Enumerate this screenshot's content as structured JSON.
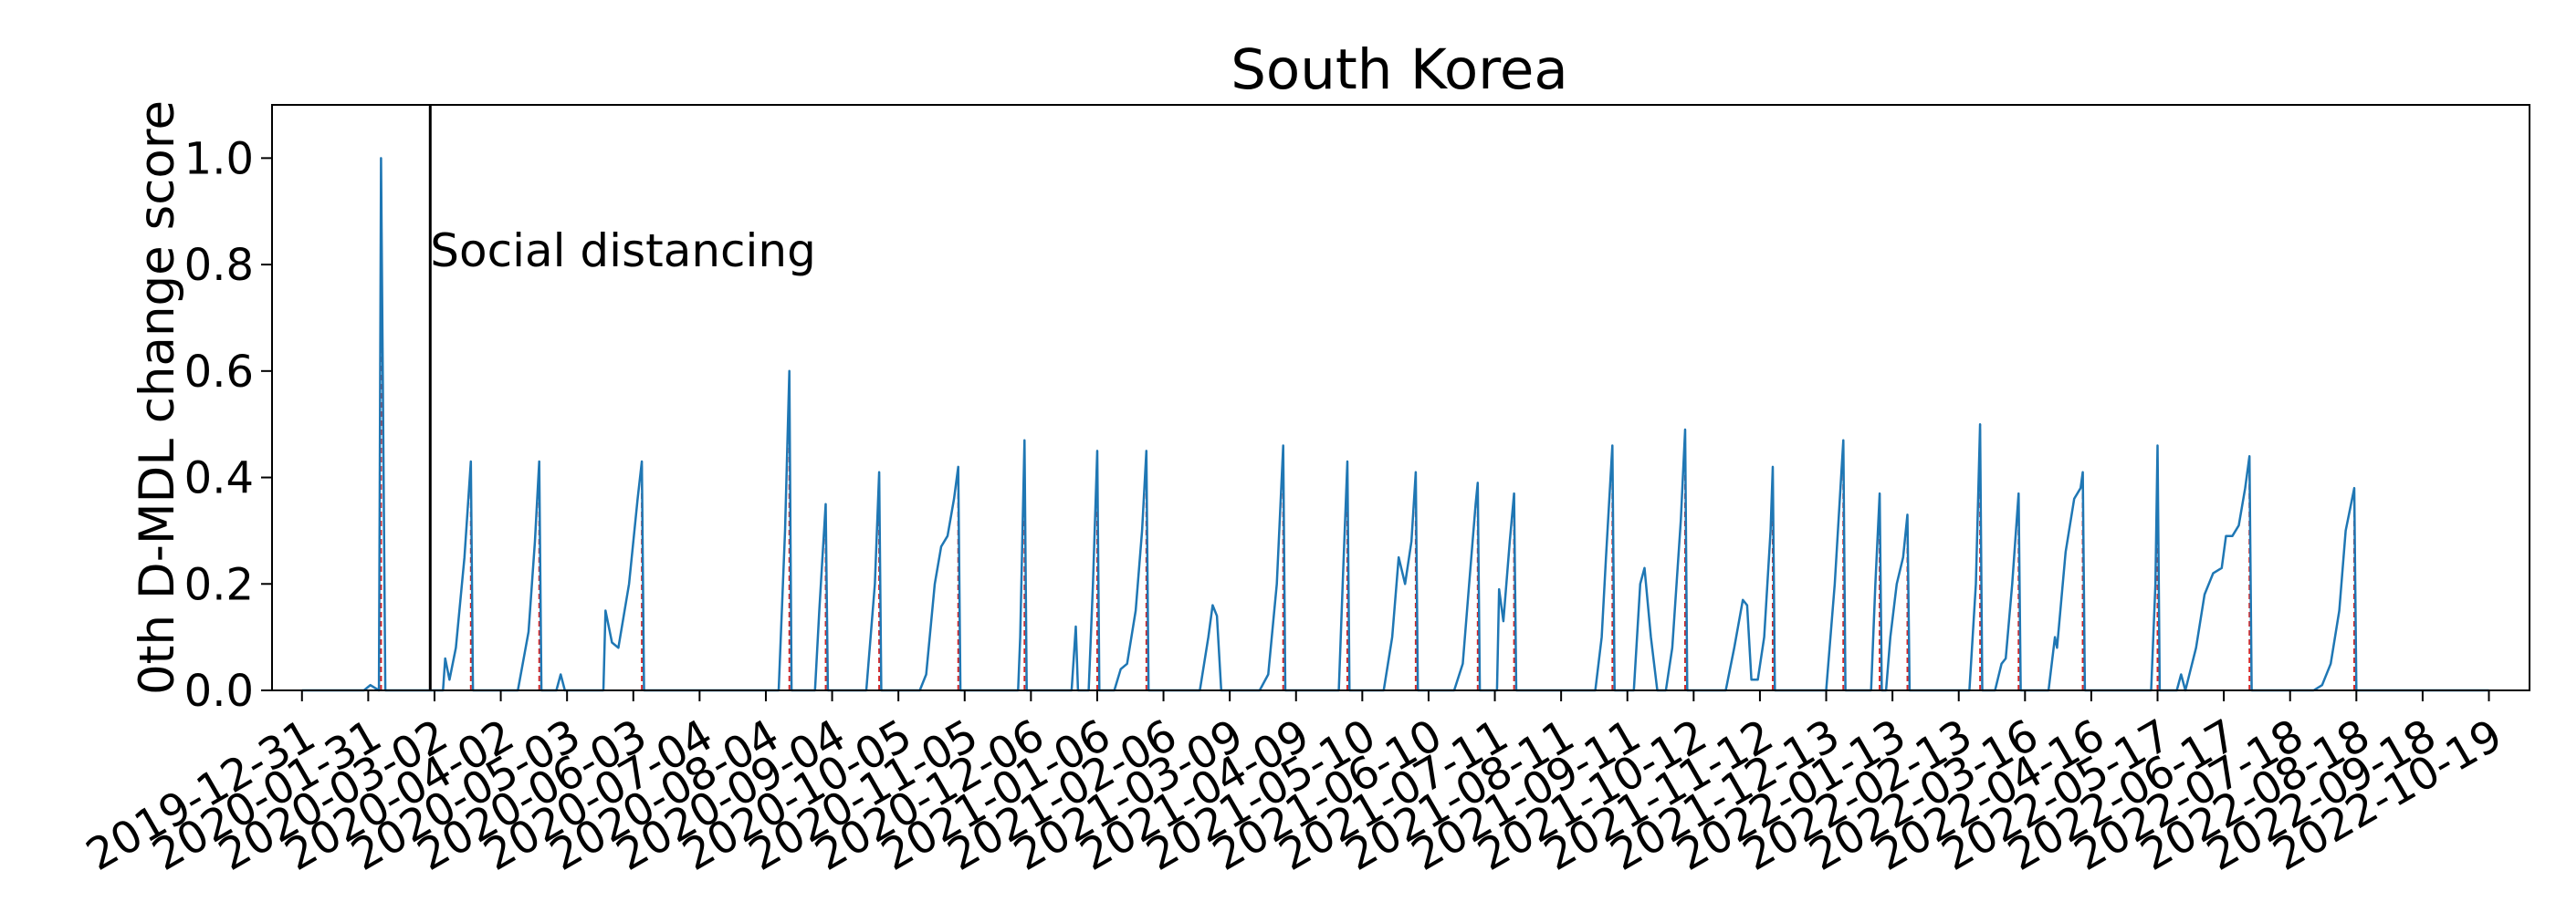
{
  "chart_data": {
    "type": "line",
    "title": "South Korea",
    "xlabel": "",
    "ylabel": "0th D-MDL change score",
    "ylim": [
      0,
      1.1
    ],
    "yticks": [
      0.0,
      0.2,
      0.4,
      0.6,
      0.8,
      1.0
    ],
    "ytick_labels": [
      "0.0",
      "0.2",
      "0.4",
      "0.6",
      "0.8",
      "1.0"
    ],
    "xlim": [
      "2019-12-17",
      "2022-11-07"
    ],
    "xtick_labels": [
      "2019-12-31",
      "2020-01-31",
      "2020-03-02",
      "2020-04-02",
      "2020-05-03",
      "2020-06-03",
      "2020-07-04",
      "2020-08-04",
      "2020-09-04",
      "2020-10-05",
      "2020-11-05",
      "2020-12-06",
      "2021-01-06",
      "2021-02-06",
      "2021-03-09",
      "2021-04-09",
      "2021-05-10",
      "2021-06-10",
      "2021-07-11",
      "2021-08-11",
      "2021-09-11",
      "2021-10-12",
      "2021-11-12",
      "2021-12-13",
      "2022-01-13",
      "2022-02-13",
      "2022-03-16",
      "2022-04-16",
      "2022-05-17",
      "2022-06-17",
      "2022-07-18",
      "2022-08-18",
      "2022-09-18",
      "2022-10-19"
    ],
    "grid": false,
    "line_color": "#1f77b4",
    "alarm_color": "#d62728",
    "event_line_color": "#000000",
    "annotations": [
      {
        "date": "2020-02-29",
        "text": "Social distancing"
      }
    ],
    "series": [
      {
        "color": "#1f77b4",
        "points": [
          [
            "2019-12-31",
            0.0
          ],
          [
            "2020-01-29",
            0.0
          ],
          [
            "2020-02-01",
            0.01
          ],
          [
            "2020-02-05",
            0.0
          ],
          [
            "2020-02-06",
            1.0
          ],
          [
            "2020-02-08",
            0.0
          ],
          [
            "2020-03-06",
            0.0
          ],
          [
            "2020-03-07",
            0.06
          ],
          [
            "2020-03-09",
            0.02
          ],
          [
            "2020-03-12",
            0.08
          ],
          [
            "2020-03-16",
            0.25
          ],
          [
            "2020-03-19",
            0.43
          ],
          [
            "2020-03-20",
            0.0
          ],
          [
            "2020-04-10",
            0.0
          ],
          [
            "2020-04-15",
            0.11
          ],
          [
            "2020-04-18",
            0.28
          ],
          [
            "2020-04-20",
            0.43
          ],
          [
            "2020-04-21",
            0.0
          ],
          [
            "2020-04-28",
            0.0
          ],
          [
            "2020-04-30",
            0.03
          ],
          [
            "2020-05-02",
            0.0
          ],
          [
            "2020-05-20",
            0.0
          ],
          [
            "2020-05-21",
            0.15
          ],
          [
            "2020-05-24",
            0.09
          ],
          [
            "2020-05-27",
            0.08
          ],
          [
            "2020-06-01",
            0.2
          ],
          [
            "2020-06-05",
            0.36
          ],
          [
            "2020-06-07",
            0.43
          ],
          [
            "2020-06-08",
            0.0
          ],
          [
            "2020-08-10",
            0.0
          ],
          [
            "2020-08-13",
            0.3
          ],
          [
            "2020-08-15",
            0.6
          ],
          [
            "2020-08-16",
            0.0
          ],
          [
            "2020-08-27",
            0.0
          ],
          [
            "2020-08-29",
            0.15
          ],
          [
            "2020-09-01",
            0.35
          ],
          [
            "2020-09-02",
            0.0
          ],
          [
            "2020-09-20",
            0.0
          ],
          [
            "2020-09-24",
            0.2
          ],
          [
            "2020-09-26",
            0.41
          ],
          [
            "2020-09-27",
            0.0
          ],
          [
            "2020-10-15",
            0.0
          ],
          [
            "2020-10-18",
            0.03
          ],
          [
            "2020-10-22",
            0.2
          ],
          [
            "2020-10-25",
            0.27
          ],
          [
            "2020-10-28",
            0.29
          ],
          [
            "2020-10-31",
            0.36
          ],
          [
            "2020-11-02",
            0.42
          ],
          [
            "2020-11-03",
            0.0
          ],
          [
            "2020-11-30",
            0.0
          ],
          [
            "2020-12-01",
            0.1
          ],
          [
            "2020-12-03",
            0.47
          ],
          [
            "2020-12-04",
            0.0
          ],
          [
            "2020-12-25",
            0.0
          ],
          [
            "2020-12-27",
            0.12
          ],
          [
            "2020-12-28",
            0.0
          ],
          [
            "2021-01-02",
            0.0
          ],
          [
            "2021-01-04",
            0.2
          ],
          [
            "2021-01-06",
            0.45
          ],
          [
            "2021-01-07",
            0.0
          ],
          [
            "2021-01-14",
            0.0
          ],
          [
            "2021-01-17",
            0.04
          ],
          [
            "2021-01-20",
            0.05
          ],
          [
            "2021-01-24",
            0.15
          ],
          [
            "2021-01-27",
            0.3
          ],
          [
            "2021-01-29",
            0.45
          ],
          [
            "2021-01-30",
            0.0
          ],
          [
            "2021-02-23",
            0.0
          ],
          [
            "2021-02-27",
            0.1
          ],
          [
            "2021-03-01",
            0.16
          ],
          [
            "2021-03-03",
            0.14
          ],
          [
            "2021-03-05",
            0.0
          ],
          [
            "2021-03-23",
            0.0
          ],
          [
            "2021-03-27",
            0.03
          ],
          [
            "2021-03-31",
            0.2
          ],
          [
            "2021-04-03",
            0.46
          ],
          [
            "2021-04-04",
            0.0
          ],
          [
            "2021-04-29",
            0.0
          ],
          [
            "2021-05-01",
            0.22
          ],
          [
            "2021-05-03",
            0.43
          ],
          [
            "2021-05-04",
            0.0
          ],
          [
            "2021-05-20",
            0.0
          ],
          [
            "2021-05-24",
            0.1
          ],
          [
            "2021-05-27",
            0.25
          ],
          [
            "2021-05-30",
            0.2
          ],
          [
            "2021-06-02",
            0.28
          ],
          [
            "2021-06-04",
            0.41
          ],
          [
            "2021-06-05",
            0.0
          ],
          [
            "2021-06-22",
            0.0
          ],
          [
            "2021-06-26",
            0.05
          ],
          [
            "2021-06-29",
            0.2
          ],
          [
            "2021-07-02",
            0.35
          ],
          [
            "2021-07-03",
            0.39
          ],
          [
            "2021-07-04",
            0.0
          ],
          [
            "2021-07-12",
            0.0
          ],
          [
            "2021-07-13",
            0.19
          ],
          [
            "2021-07-15",
            0.13
          ],
          [
            "2021-07-18",
            0.28
          ],
          [
            "2021-07-20",
            0.37
          ],
          [
            "2021-07-21",
            0.0
          ],
          [
            "2021-08-27",
            0.0
          ],
          [
            "2021-08-30",
            0.1
          ],
          [
            "2021-09-01",
            0.25
          ],
          [
            "2021-09-04",
            0.46
          ],
          [
            "2021-09-05",
            0.0
          ],
          [
            "2021-09-14",
            0.0
          ],
          [
            "2021-09-17",
            0.2
          ],
          [
            "2021-09-19",
            0.23
          ],
          [
            "2021-09-22",
            0.1
          ],
          [
            "2021-09-25",
            0.0
          ],
          [
            "2021-09-29",
            0.0
          ],
          [
            "2021-10-02",
            0.08
          ],
          [
            "2021-10-06",
            0.32
          ],
          [
            "2021-10-08",
            0.49
          ],
          [
            "2021-10-09",
            0.0
          ],
          [
            "2021-10-27",
            0.0
          ],
          [
            "2021-10-31",
            0.08
          ],
          [
            "2021-11-04",
            0.17
          ],
          [
            "2021-11-06",
            0.16
          ],
          [
            "2021-11-08",
            0.02
          ],
          [
            "2021-11-11",
            0.02
          ],
          [
            "2021-11-14",
            0.1
          ],
          [
            "2021-11-17",
            0.3
          ],
          [
            "2021-11-18",
            0.42
          ],
          [
            "2021-11-19",
            0.0
          ],
          [
            "2021-12-13",
            0.0
          ],
          [
            "2021-12-17",
            0.2
          ],
          [
            "2021-12-21",
            0.47
          ],
          [
            "2021-12-22",
            0.0
          ],
          [
            "2022-01-03",
            0.0
          ],
          [
            "2022-01-05",
            0.2
          ],
          [
            "2022-01-07",
            0.37
          ],
          [
            "2022-01-08",
            0.0
          ],
          [
            "2022-01-10",
            0.0
          ],
          [
            "2022-01-12",
            0.1
          ],
          [
            "2022-01-15",
            0.2
          ],
          [
            "2022-01-18",
            0.25
          ],
          [
            "2022-01-20",
            0.33
          ],
          [
            "2022-01-21",
            0.0
          ],
          [
            "2022-02-18",
            0.0
          ],
          [
            "2022-02-21",
            0.2
          ],
          [
            "2022-02-23",
            0.5
          ],
          [
            "2022-02-24",
            0.0
          ],
          [
            "2022-03-02",
            0.0
          ],
          [
            "2022-03-05",
            0.05
          ],
          [
            "2022-03-07",
            0.06
          ],
          [
            "2022-03-10",
            0.2
          ],
          [
            "2022-03-13",
            0.37
          ],
          [
            "2022-03-14",
            0.0
          ],
          [
            "2022-03-27",
            0.0
          ],
          [
            "2022-03-30",
            0.1
          ],
          [
            "2022-03-31",
            0.08
          ],
          [
            "2022-04-04",
            0.26
          ],
          [
            "2022-04-08",
            0.36
          ],
          [
            "2022-04-11",
            0.38
          ],
          [
            "2022-04-12",
            0.41
          ],
          [
            "2022-04-13",
            0.0
          ],
          [
            "2022-05-14",
            0.0
          ],
          [
            "2022-05-16",
            0.2
          ],
          [
            "2022-05-17",
            0.46
          ],
          [
            "2022-05-18",
            0.0
          ],
          [
            "2022-05-26",
            0.0
          ],
          [
            "2022-05-28",
            0.03
          ],
          [
            "2022-05-30",
            0.0
          ],
          [
            "2022-06-04",
            0.08
          ],
          [
            "2022-06-08",
            0.18
          ],
          [
            "2022-06-12",
            0.22
          ],
          [
            "2022-06-16",
            0.23
          ],
          [
            "2022-06-18",
            0.29
          ],
          [
            "2022-06-21",
            0.29
          ],
          [
            "2022-06-24",
            0.31
          ],
          [
            "2022-06-27",
            0.38
          ],
          [
            "2022-06-29",
            0.44
          ],
          [
            "2022-06-30",
            0.0
          ],
          [
            "2022-07-29",
            0.0
          ],
          [
            "2022-08-02",
            0.01
          ],
          [
            "2022-08-06",
            0.05
          ],
          [
            "2022-08-10",
            0.15
          ],
          [
            "2022-08-13",
            0.3
          ],
          [
            "2022-08-17",
            0.38
          ],
          [
            "2022-08-18",
            0.0
          ],
          [
            "2022-10-19",
            0.0
          ]
        ]
      }
    ],
    "alarm_dates": [
      "2020-02-06",
      "2020-03-19",
      "2020-04-20",
      "2020-06-07",
      "2020-08-15",
      "2020-09-01",
      "2020-09-26",
      "2020-11-02",
      "2020-12-03",
      "2021-01-06",
      "2021-01-29",
      "2021-04-03",
      "2021-05-03",
      "2021-06-04",
      "2021-07-03",
      "2021-07-20",
      "2021-09-04",
      "2021-10-08",
      "2021-11-18",
      "2021-12-21",
      "2022-01-07",
      "2022-01-20",
      "2022-02-23",
      "2022-03-13",
      "2022-04-12",
      "2022-05-17",
      "2022-06-29",
      "2022-08-17"
    ]
  }
}
